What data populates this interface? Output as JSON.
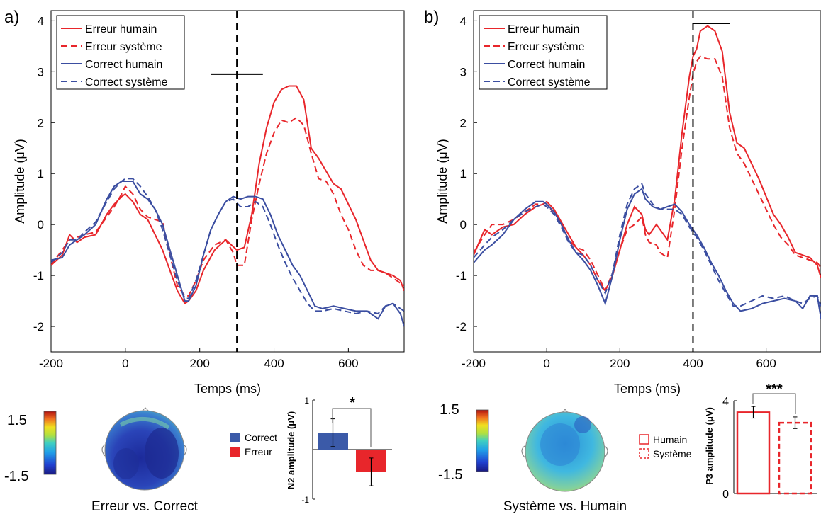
{
  "colors": {
    "red": "#e8262b",
    "blue": "#3b4ea1",
    "black": "#000000",
    "bar_blue": "#3b5aa8",
    "bar_red": "#e8262b"
  },
  "chart_data": [
    {
      "panel": "a)",
      "type": "line",
      "xlabel": "Temps (ms)",
      "ylabel": "Amplitude (μV)",
      "xlim": [
        -200,
        750
      ],
      "ylim": [
        -2.5,
        4.2
      ],
      "xticks": [
        "-200",
        "0",
        "200",
        "400",
        "600"
      ],
      "yticks": [
        "-2",
        "-1",
        "0",
        "1",
        "2",
        "3",
        "4"
      ],
      "vline_x": 300,
      "hbar": {
        "x": [
          230,
          370
        ],
        "y": 2.95
      },
      "legend": [
        "Erreur humain",
        "Erreur système",
        "Correct humain",
        "Correct système"
      ],
      "series": [
        {
          "name": "Erreur humain",
          "style": "solid",
          "color": "red",
          "x": [
            -200,
            -170,
            -150,
            -130,
            -110,
            -80,
            -50,
            -30,
            -10,
            0,
            20,
            40,
            60,
            80,
            100,
            120,
            140,
            160,
            170,
            190,
            210,
            240,
            270,
            300,
            320,
            340,
            360,
            380,
            400,
            420,
            440,
            460,
            480,
            500,
            520,
            540,
            560,
            580,
            600,
            620,
            640,
            660,
            680,
            700,
            720,
            740,
            750
          ],
          "y": [
            -0.8,
            -0.6,
            -0.2,
            -0.35,
            -0.25,
            -0.2,
            0.2,
            0.4,
            0.55,
            0.6,
            0.45,
            0.2,
            0.1,
            -0.2,
            -0.5,
            -0.9,
            -1.3,
            -1.55,
            -1.5,
            -1.3,
            -0.9,
            -0.5,
            -0.3,
            -0.5,
            -0.45,
            0.2,
            1.2,
            1.9,
            2.4,
            2.65,
            2.72,
            2.72,
            2.45,
            1.5,
            1.3,
            1.05,
            0.8,
            0.7,
            0.4,
            0.1,
            -0.3,
            -0.7,
            -0.9,
            -0.95,
            -1.0,
            -1.1,
            -1.3
          ]
        },
        {
          "name": "Erreur système",
          "style": "dashed",
          "color": "red",
          "x": [
            -200,
            -170,
            -150,
            -130,
            -110,
            -80,
            -50,
            -30,
            -10,
            0,
            20,
            40,
            60,
            80,
            100,
            120,
            140,
            160,
            170,
            190,
            210,
            240,
            270,
            290,
            300,
            320,
            340,
            360,
            380,
            400,
            420,
            440,
            460,
            480,
            500,
            520,
            540,
            560,
            580,
            600,
            620,
            640,
            660,
            680,
            700,
            720,
            740,
            750
          ],
          "y": [
            -0.8,
            -0.5,
            -0.3,
            -0.25,
            -0.2,
            -0.15,
            0.15,
            0.35,
            0.6,
            0.75,
            0.6,
            0.3,
            0.15,
            0.1,
            0.05,
            -0.6,
            -1.2,
            -1.4,
            -1.4,
            -1.1,
            -0.7,
            -0.4,
            -0.3,
            -0.55,
            -0.8,
            -0.8,
            0.1,
            0.8,
            1.4,
            1.8,
            2.05,
            2.0,
            2.1,
            1.95,
            1.4,
            0.9,
            0.85,
            0.6,
            0.2,
            -0.1,
            -0.5,
            -0.8,
            -0.9,
            -0.9,
            -0.95,
            -1.05,
            -1.15,
            -1.2
          ]
        },
        {
          "name": "Correct humain",
          "style": "solid",
          "color": "blue",
          "x": [
            -200,
            -170,
            -150,
            -130,
            -110,
            -80,
            -50,
            -30,
            -10,
            0,
            20,
            40,
            60,
            80,
            100,
            120,
            140,
            160,
            170,
            190,
            210,
            230,
            250,
            270,
            290,
            310,
            330,
            350,
            370,
            390,
            410,
            430,
            450,
            470,
            490,
            510,
            530,
            560,
            590,
            620,
            650,
            680,
            700,
            720,
            740,
            750
          ],
          "y": [
            -0.7,
            -0.65,
            -0.4,
            -0.3,
            -0.2,
            0.0,
            0.5,
            0.75,
            0.85,
            0.85,
            0.85,
            0.6,
            0.5,
            0.3,
            0.0,
            -0.5,
            -1.0,
            -1.5,
            -1.5,
            -1.2,
            -0.6,
            -0.1,
            0.2,
            0.45,
            0.55,
            0.5,
            0.55,
            0.55,
            0.5,
            0.2,
            -0.2,
            -0.5,
            -0.8,
            -1.0,
            -1.3,
            -1.6,
            -1.65,
            -1.6,
            -1.65,
            -1.7,
            -1.7,
            -1.85,
            -1.6,
            -1.55,
            -1.75,
            -2.0
          ]
        },
        {
          "name": "Correct système",
          "style": "dashed",
          "color": "blue",
          "x": [
            -200,
            -170,
            -150,
            -130,
            -110,
            -80,
            -50,
            -30,
            -10,
            0,
            20,
            40,
            60,
            80,
            100,
            120,
            140,
            160,
            170,
            190,
            210,
            230,
            250,
            270,
            290,
            310,
            330,
            350,
            370,
            390,
            410,
            430,
            450,
            470,
            490,
            510,
            530,
            560,
            590,
            620,
            650,
            680,
            700,
            720,
            740,
            750
          ],
          "y": [
            -0.75,
            -0.55,
            -0.3,
            -0.3,
            -0.15,
            0.05,
            0.45,
            0.7,
            0.85,
            0.9,
            0.9,
            0.75,
            0.55,
            0.3,
            -0.1,
            -0.6,
            -1.1,
            -1.45,
            -1.45,
            -1.1,
            -0.6,
            -0.1,
            0.2,
            0.45,
            0.5,
            0.35,
            0.35,
            0.45,
            0.35,
            0.0,
            -0.4,
            -0.75,
            -1.05,
            -1.3,
            -1.55,
            -1.7,
            -1.7,
            -1.65,
            -1.7,
            -1.75,
            -1.7,
            -1.75,
            -1.6,
            -1.55,
            -1.65,
            -1.7
          ]
        }
      ]
    },
    {
      "panel": "b)",
      "type": "line",
      "xlabel": "Temps (ms)",
      "ylabel": "Amplitude (μV)",
      "xlim": [
        -200,
        750
      ],
      "ylim": [
        -2.5,
        4.2
      ],
      "xticks": [
        "-200",
        "0",
        "200",
        "400",
        "600"
      ],
      "yticks": [
        "-2",
        "-1",
        "0",
        "1",
        "2",
        "3",
        "4"
      ],
      "vline_x": 400,
      "hbar": {
        "x": [
          400,
          500
        ],
        "y": 3.95
      },
      "legend": [
        "Erreur humain",
        "Erreur système",
        "Correct humain",
        "Correct système"
      ],
      "series": [
        {
          "name": "Erreur humain",
          "style": "solid",
          "color": "red",
          "x": [
            -200,
            -170,
            -150,
            -120,
            -90,
            -60,
            -30,
            -10,
            0,
            20,
            40,
            60,
            80,
            100,
            120,
            140,
            160,
            180,
            200,
            220,
            240,
            260,
            270,
            280,
            300,
            310,
            330,
            350,
            370,
            390,
            400,
            410,
            420,
            440,
            460,
            480,
            500,
            520,
            540,
            560,
            580,
            600,
            620,
            640,
            660,
            680,
            700,
            720,
            740,
            750
          ],
          "y": [
            -0.6,
            -0.1,
            -0.2,
            -0.05,
            0.0,
            0.2,
            0.35,
            0.4,
            0.45,
            0.3,
            0.05,
            -0.2,
            -0.45,
            -0.6,
            -0.8,
            -1.1,
            -1.3,
            -1.0,
            -0.5,
            0.0,
            0.35,
            0.2,
            -0.1,
            -0.2,
            0.0,
            -0.1,
            -0.3,
            0.5,
            1.8,
            2.9,
            3.3,
            3.45,
            3.8,
            3.9,
            3.8,
            3.4,
            2.2,
            1.6,
            1.5,
            1.2,
            0.9,
            0.55,
            0.2,
            0.0,
            -0.25,
            -0.55,
            -0.6,
            -0.65,
            -0.8,
            -1.05
          ]
        },
        {
          "name": "Erreur système",
          "style": "dashed",
          "color": "red",
          "x": [
            -200,
            -170,
            -150,
            -120,
            -90,
            -60,
            -30,
            -10,
            0,
            20,
            40,
            60,
            80,
            100,
            120,
            140,
            160,
            180,
            200,
            220,
            240,
            260,
            270,
            280,
            300,
            310,
            330,
            350,
            370,
            390,
            400,
            410,
            420,
            440,
            460,
            480,
            500,
            520,
            540,
            560,
            580,
            600,
            620,
            640,
            660,
            680,
            700,
            720,
            740,
            750
          ],
          "y": [
            -0.55,
            -0.2,
            0.0,
            0.0,
            0.1,
            0.25,
            0.4,
            0.4,
            0.35,
            0.25,
            0.0,
            -0.3,
            -0.45,
            -0.5,
            -0.7,
            -1.0,
            -1.3,
            -0.95,
            -0.5,
            -0.1,
            0.0,
            0.15,
            -0.2,
            -0.35,
            -0.4,
            -0.55,
            -0.65,
            0.3,
            1.5,
            2.5,
            2.95,
            3.2,
            3.3,
            3.25,
            3.25,
            2.9,
            1.9,
            1.4,
            1.2,
            0.9,
            0.6,
            0.3,
            0.0,
            -0.25,
            -0.4,
            -0.6,
            -0.65,
            -0.7,
            -0.75,
            -0.85
          ]
        },
        {
          "name": "Correct humain",
          "style": "solid",
          "color": "blue",
          "x": [
            -200,
            -170,
            -150,
            -120,
            -90,
            -60,
            -30,
            -10,
            0,
            20,
            40,
            60,
            80,
            100,
            120,
            140,
            160,
            180,
            200,
            220,
            240,
            260,
            270,
            290,
            310,
            330,
            350,
            370,
            390,
            410,
            430,
            450,
            470,
            490,
            510,
            530,
            560,
            590,
            620,
            650,
            680,
            700,
            720,
            740,
            750
          ],
          "y": [
            -0.75,
            -0.5,
            -0.4,
            -0.2,
            0.1,
            0.3,
            0.45,
            0.45,
            0.4,
            0.25,
            0.0,
            -0.3,
            -0.55,
            -0.7,
            -0.9,
            -1.2,
            -1.55,
            -1.0,
            -0.3,
            0.3,
            0.6,
            0.7,
            0.5,
            0.35,
            0.3,
            0.35,
            0.4,
            0.25,
            0.0,
            -0.2,
            -0.45,
            -0.75,
            -1.0,
            -1.3,
            -1.55,
            -1.7,
            -1.65,
            -1.55,
            -1.5,
            -1.45,
            -1.5,
            -1.65,
            -1.4,
            -1.4,
            -1.85
          ]
        },
        {
          "name": "Correct système",
          "style": "dashed",
          "color": "blue",
          "x": [
            -200,
            -170,
            -150,
            -120,
            -90,
            -60,
            -30,
            -10,
            0,
            20,
            40,
            60,
            80,
            100,
            120,
            140,
            160,
            180,
            200,
            220,
            240,
            260,
            270,
            290,
            310,
            330,
            350,
            370,
            390,
            410,
            430,
            450,
            470,
            490,
            510,
            530,
            560,
            590,
            620,
            650,
            680,
            700,
            720,
            740,
            750
          ],
          "y": [
            -0.65,
            -0.4,
            -0.25,
            -0.1,
            0.1,
            0.25,
            0.35,
            0.4,
            0.35,
            0.2,
            -0.05,
            -0.35,
            -0.55,
            -0.6,
            -0.8,
            -1.1,
            -1.35,
            -0.95,
            -0.2,
            0.4,
            0.7,
            0.8,
            0.6,
            0.4,
            0.3,
            0.3,
            0.3,
            0.2,
            -0.05,
            -0.25,
            -0.5,
            -0.8,
            -1.1,
            -1.35,
            -1.6,
            -1.6,
            -1.5,
            -1.4,
            -1.45,
            -1.4,
            -1.5,
            -1.55,
            -1.45,
            -1.4,
            -1.6
          ]
        }
      ]
    },
    {
      "panel": "a-bar",
      "type": "bar",
      "ylabel": "N2 amplitude (μV)",
      "ylim": [
        -1,
        1
      ],
      "yticks": [
        "1",
        "-1"
      ],
      "categories": [
        "Correct",
        "Erreur"
      ],
      "values": [
        0.34,
        -0.45
      ],
      "errors": [
        0.28,
        0.28
      ],
      "significance": "*",
      "legend": [
        "Correct",
        "Erreur"
      ]
    },
    {
      "panel": "b-bar",
      "type": "bar",
      "ylabel": "P3 amplitude (μV)",
      "ylim": [
        0,
        4
      ],
      "yticks": [
        "4",
        "0"
      ],
      "categories": [
        "Humain",
        "Système"
      ],
      "values": [
        3.5,
        3.05
      ],
      "errors": [
        0.25,
        0.25
      ],
      "significance": "***",
      "legend": [
        "Humain",
        "Système"
      ]
    }
  ],
  "topo_a": {
    "scale_max": "1.5",
    "scale_min": "-1.5",
    "caption": "Erreur vs. Correct"
  },
  "topo_b": {
    "scale_max": "1.5",
    "scale_min": "-1.5",
    "caption": "Système vs. Humain"
  }
}
